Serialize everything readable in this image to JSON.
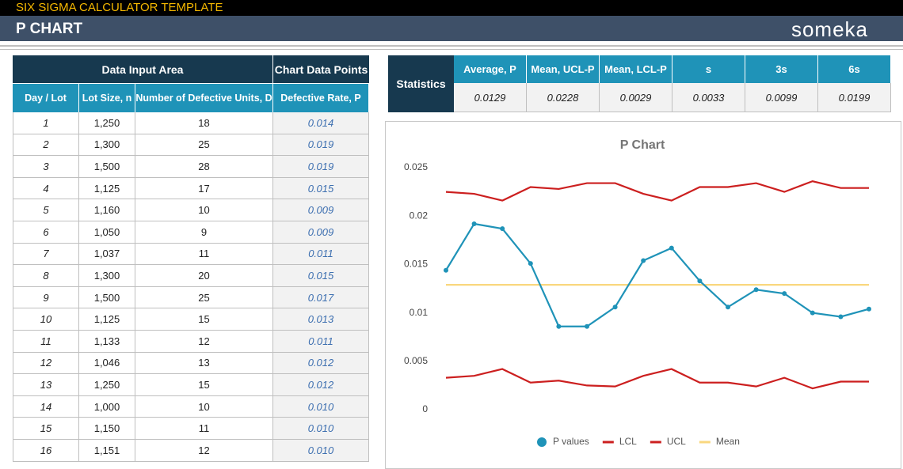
{
  "header": {
    "app_title": "SIX SIGMA CALCULATOR TEMPLATE",
    "page_title": "P CHART",
    "brand": "someka"
  },
  "input_table": {
    "group_headers": [
      "Data Input Area",
      "Chart Data Points"
    ],
    "columns": [
      "Day / Lot",
      "Lot Size, n",
      "Number of Defective Units, D",
      "Defective Rate, P"
    ],
    "rows": [
      [
        "1",
        "1,250",
        "18",
        "0.014"
      ],
      [
        "2",
        "1,300",
        "25",
        "0.019"
      ],
      [
        "3",
        "1,500",
        "28",
        "0.019"
      ],
      [
        "4",
        "1,125",
        "17",
        "0.015"
      ],
      [
        "5",
        "1,160",
        "10",
        "0.009"
      ],
      [
        "6",
        "1,050",
        "9",
        "0.009"
      ],
      [
        "7",
        "1,037",
        "11",
        "0.011"
      ],
      [
        "8",
        "1,300",
        "20",
        "0.015"
      ],
      [
        "9",
        "1,500",
        "25",
        "0.017"
      ],
      [
        "10",
        "1,125",
        "15",
        "0.013"
      ],
      [
        "11",
        "1,133",
        "12",
        "0.011"
      ],
      [
        "12",
        "1,046",
        "13",
        "0.012"
      ],
      [
        "13",
        "1,250",
        "15",
        "0.012"
      ],
      [
        "14",
        "1,000",
        "10",
        "0.010"
      ],
      [
        "15",
        "1,150",
        "11",
        "0.010"
      ],
      [
        "16",
        "1,151",
        "12",
        "0.010"
      ]
    ]
  },
  "statistics": {
    "label": "Statistics",
    "columns": [
      "Average, P",
      "Mean, UCL-P",
      "Mean, LCL-P",
      "s",
      "3s",
      "6s"
    ],
    "values": [
      "0.0129",
      "0.0228",
      "0.0029",
      "0.0033",
      "0.0099",
      "0.0199"
    ]
  },
  "chart_data": {
    "type": "line",
    "title": "P Chart",
    "ylim": [
      0,
      0.025
    ],
    "yticks": [
      0,
      0.005,
      0.01,
      0.015,
      0.02,
      0.025
    ],
    "grid": false,
    "legend": "bottom",
    "series": [
      {
        "name": "P values",
        "color": "#1f93b8",
        "marker": true,
        "values": [
          0.0144,
          0.0192,
          0.0187,
          0.0151,
          0.0086,
          0.0086,
          0.0106,
          0.0154,
          0.0167,
          0.0133,
          0.0106,
          0.0124,
          0.012,
          0.01,
          0.0096,
          0.0104
        ]
      },
      {
        "name": "LCL",
        "color": "#cc1f1f",
        "marker": false,
        "values": [
          0.0033,
          0.0035,
          0.0042,
          0.0028,
          0.003,
          0.0025,
          0.0024,
          0.0035,
          0.0042,
          0.0028,
          0.0028,
          0.0024,
          0.0033,
          0.0022,
          0.0029,
          0.0029
        ]
      },
      {
        "name": "UCL",
        "color": "#cc1f1f",
        "marker": false,
        "values": [
          0.0225,
          0.0223,
          0.0216,
          0.023,
          0.0228,
          0.0234,
          0.0234,
          0.0223,
          0.0216,
          0.023,
          0.023,
          0.0234,
          0.0225,
          0.0236,
          0.0229,
          0.0229
        ]
      },
      {
        "name": "Mean",
        "color": "#f9d77e",
        "marker": false,
        "values": [
          0.0129,
          0.0129,
          0.0129,
          0.0129,
          0.0129,
          0.0129,
          0.0129,
          0.0129,
          0.0129,
          0.0129,
          0.0129,
          0.0129,
          0.0129,
          0.0129,
          0.0129,
          0.0129
        ]
      }
    ]
  }
}
